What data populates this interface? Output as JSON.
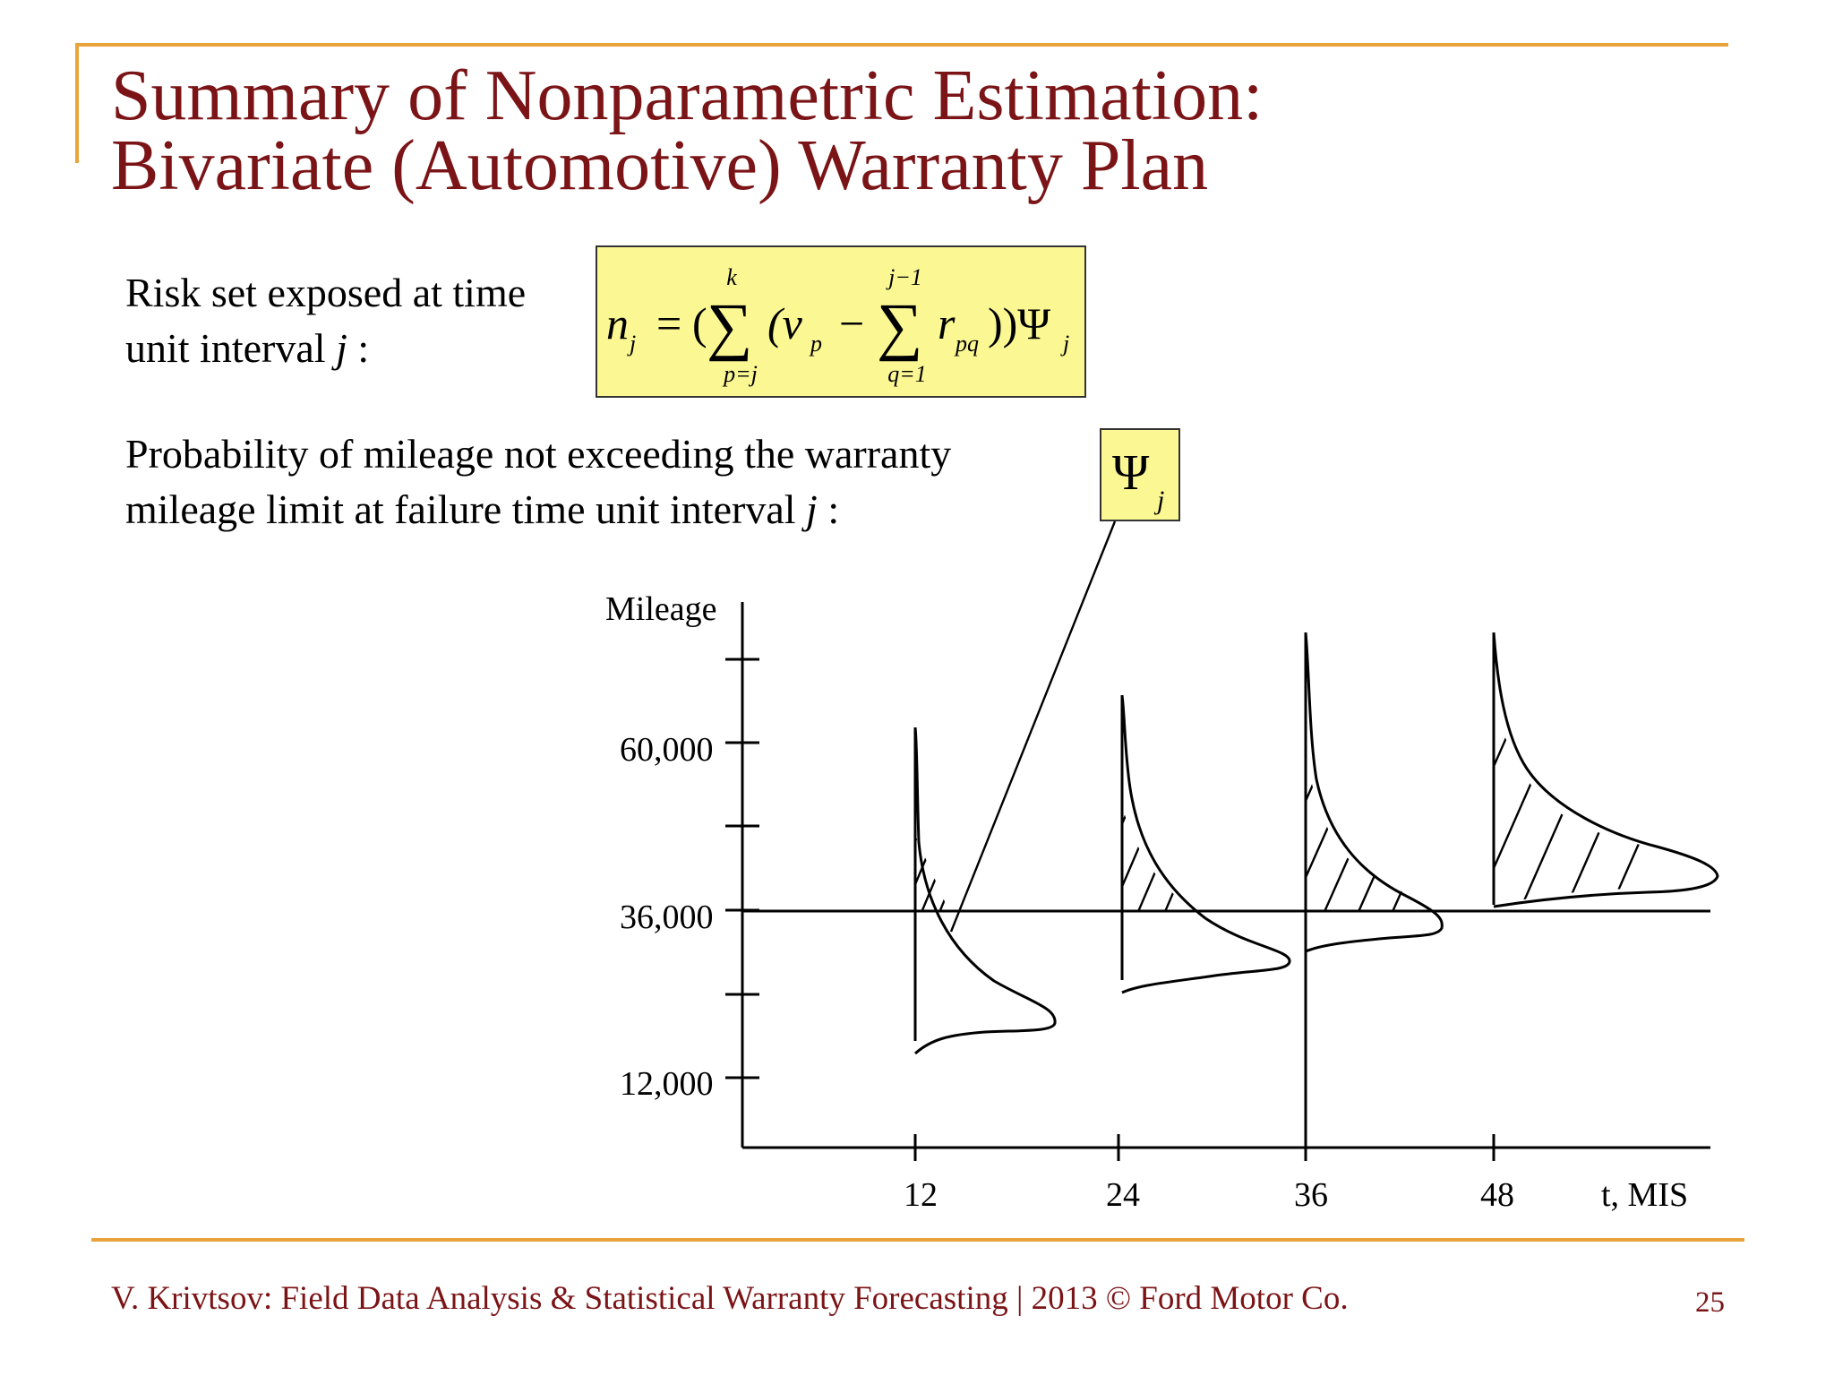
{
  "title": {
    "line1": "Summary of Nonparametric Estimation:",
    "line2": "Bivariate (Automotive) Warranty Plan"
  },
  "risk_set": {
    "line1": "Risk set exposed at time",
    "line2_prefix": "unit interval ",
    "line2_var": "j",
    "line2_suffix": " :"
  },
  "probability": {
    "line1": "Probability of mileage not exceeding the warranty",
    "line2_prefix": "mileage limit at failure time unit interval ",
    "line2_var": "j",
    "line2_suffix": " :"
  },
  "formula": {
    "lhs": "n",
    "lhs_sub": "j",
    "equals": "=",
    "open": "(",
    "sum1_upper": "k",
    "sum1_lower": "p=j",
    "sum_symbol": "∑",
    "v": "(v",
    "v_sub": "p",
    "minus": "−",
    "sum2_upper": "j−1",
    "sum2_lower": "q=1",
    "r": "r",
    "r_sub": "pq",
    "close": "))Ψ",
    "psi_sub": "j"
  },
  "psi_label": {
    "symbol": "Ψ",
    "sub": "j"
  },
  "chart_data": {
    "type": "diagram",
    "ylabel": "Mileage",
    "xlabel": "t, MIS",
    "y_ticks": [
      "60,000",
      "36,000",
      "12,000"
    ],
    "x_ticks": [
      "12",
      "24",
      "36",
      "48"
    ],
    "warranty_limit": 36000,
    "distributions_at": [
      12,
      24,
      36,
      48
    ]
  },
  "footer": "V. Krivtsov: Field Data Analysis & Statistical Warranty Forecasting |  2013 © Ford Motor Co.",
  "page_number": "25",
  "colors": {
    "title": "#7b1416",
    "accent": "#e8a33c",
    "highlight": "#fbf793"
  }
}
